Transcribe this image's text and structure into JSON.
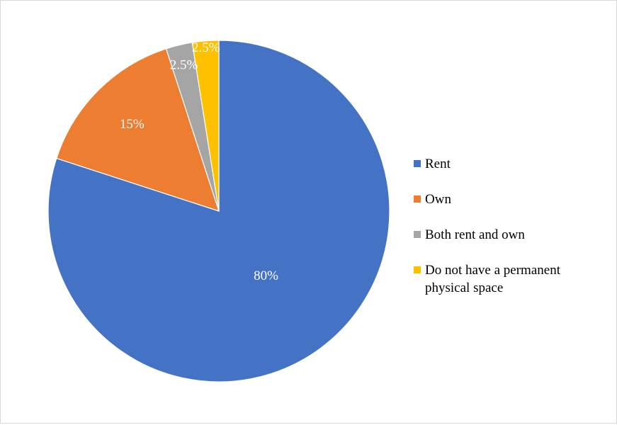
{
  "chart_data": {
    "type": "pie",
    "slices": [
      {
        "name": "Rent",
        "value": 80,
        "label": "80%",
        "color": "#4472C4"
      },
      {
        "name": "Own",
        "value": 15,
        "label": "15%",
        "color": "#ED7D31"
      },
      {
        "name": "Both rent and own",
        "value": 2.5,
        "label": "2.5%",
        "color": "#A5A5A5"
      },
      {
        "name": "Do not have a permanent physical space",
        "value": 2.5,
        "label": "2.5%",
        "color": "#FFC000"
      }
    ],
    "start_angle": "12 o'clock",
    "direction": "clockwise",
    "legend_position": "right"
  }
}
